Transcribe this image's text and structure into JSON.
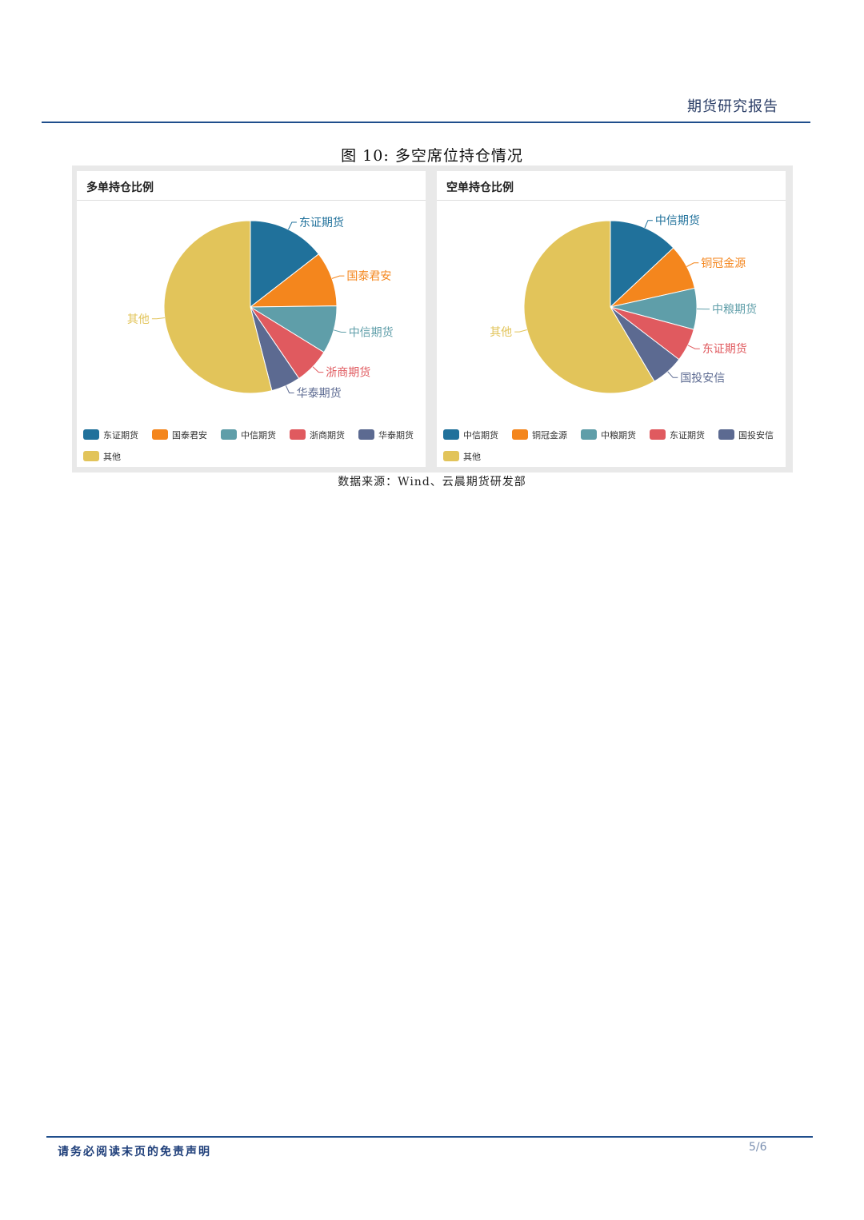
{
  "header": {
    "title": "期货研究报告"
  },
  "figure": {
    "caption": "图 10:  多空席位持仓情况"
  },
  "source": "数据来源：Wind、云晨期货研发部",
  "footer": {
    "disclaimer": "请务必阅读末页的免责声明",
    "page": "5/6"
  },
  "chart_data": [
    {
      "type": "pie",
      "title": "多单持仓比例",
      "categories": [
        "东证期货",
        "国泰君安",
        "中信期货",
        "浙商期货",
        "华泰期货",
        "其他"
      ],
      "values": [
        14.5,
        10.3,
        9.0,
        6.7,
        5.5,
        54.0
      ],
      "colors": [
        "#20719b",
        "#f4861d",
        "#5f9ea9",
        "#e05a5f",
        "#5c6a91",
        "#e2c45a"
      ],
      "legend_position": "bottom"
    },
    {
      "type": "pie",
      "title": "空单持仓比例",
      "categories": [
        "中信期货",
        "铜冠金源",
        "中粮期货",
        "东证期货",
        "国投安信",
        "其他"
      ],
      "values": [
        13.0,
        8.5,
        7.7,
        6.2,
        6.1,
        58.5
      ],
      "colors": [
        "#20719b",
        "#f4861d",
        "#5f9ea9",
        "#e05a5f",
        "#5c6a91",
        "#e2c45a"
      ],
      "legend_position": "bottom"
    }
  ]
}
